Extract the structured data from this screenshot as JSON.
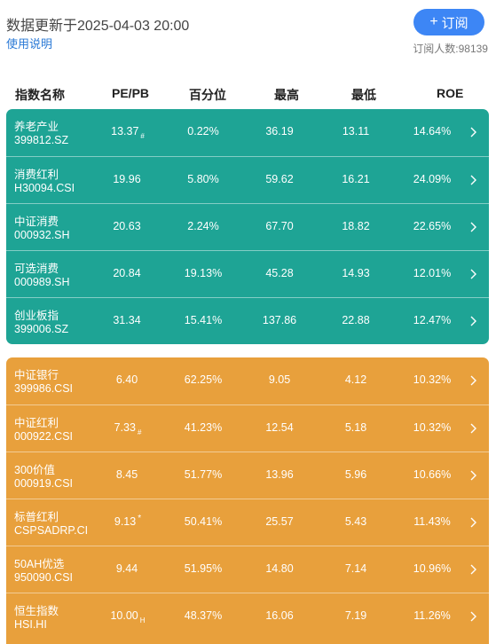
{
  "header": {
    "update_text": "数据更新于2025-04-03 20:00",
    "help_link": "使用说明",
    "subscribe_label": "订阅",
    "subscribe_icon": "plus-icon",
    "subscriber_count": "订阅人数:98139",
    "accent_color": "#3d86f5"
  },
  "columns": [
    "指数名称",
    "PE/PB",
    "百分位",
    "最高",
    "最低",
    "ROE"
  ],
  "groups": [
    {
      "color": "#1ea495",
      "rows": [
        {
          "name": "养老产业",
          "code": "399812.SZ",
          "pe": "13.37",
          "mark": "#",
          "pct": "0.22%",
          "hi": "36.19",
          "lo": "13.11",
          "roe": "14.64%"
        },
        {
          "name": "消费红利",
          "code": "H30094.CSI",
          "pe": "19.96",
          "mark": "",
          "pct": "5.80%",
          "hi": "59.62",
          "lo": "16.21",
          "roe": "24.09%"
        },
        {
          "name": "中证消费",
          "code": "000932.SH",
          "pe": "20.63",
          "mark": "",
          "pct": "2.24%",
          "hi": "67.70",
          "lo": "18.82",
          "roe": "22.65%"
        },
        {
          "name": "可选消费",
          "code": "000989.SH",
          "pe": "20.84",
          "mark": "",
          "pct": "19.13%",
          "hi": "45.28",
          "lo": "14.93",
          "roe": "12.01%"
        },
        {
          "name": "创业板指",
          "code": "399006.SZ",
          "pe": "31.34",
          "mark": "",
          "pct": "15.41%",
          "hi": "137.86",
          "lo": "22.88",
          "roe": "12.47%"
        }
      ]
    },
    {
      "color": "#e8a03c",
      "rows": [
        {
          "name": "中证银行",
          "code": "399986.CSI",
          "pe": "6.40",
          "mark": "",
          "pct": "62.25%",
          "hi": "9.05",
          "lo": "4.12",
          "roe": "10.32%"
        },
        {
          "name": "中证红利",
          "code": "000922.CSI",
          "pe": "7.33",
          "mark": "#",
          "pct": "41.23%",
          "hi": "12.54",
          "lo": "5.18",
          "roe": "10.32%"
        },
        {
          "name": "300价值",
          "code": "000919.CSI",
          "pe": "8.45",
          "mark": "",
          "pct": "51.77%",
          "hi": "13.96",
          "lo": "5.96",
          "roe": "10.66%"
        },
        {
          "name": "标普红利",
          "code": "CSPSADRP.CI",
          "pe": "9.13",
          "mark": "*",
          "pct": "50.41%",
          "hi": "25.57",
          "lo": "5.43",
          "roe": "11.43%"
        },
        {
          "name": "50AH优选",
          "code": "950090.CSI",
          "pe": "9.44",
          "mark": "",
          "pct": "51.95%",
          "hi": "14.80",
          "lo": "7.14",
          "roe": "10.96%"
        },
        {
          "name": "恒生指数",
          "code": "HSI.HI",
          "pe": "10.00",
          "mark": "H",
          "pct": "48.37%",
          "hi": "16.06",
          "lo": "7.19",
          "roe": "11.26%"
        }
      ]
    }
  ]
}
